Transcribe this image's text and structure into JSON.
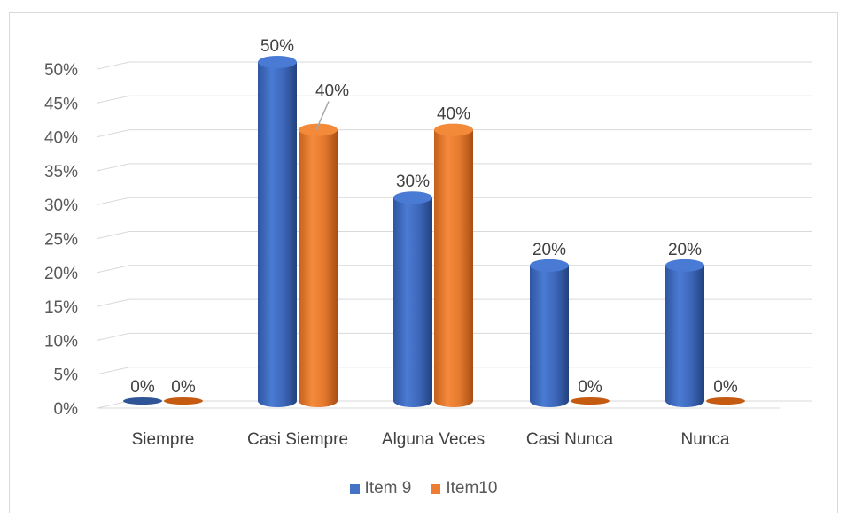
{
  "chart_data": {
    "type": "bar",
    "categories": [
      "Siempre",
      "Casi Siempre",
      "Alguna Veces",
      "Casi Nunca",
      "Nunca"
    ],
    "series": [
      {
        "name": "Item 9",
        "values": [
          0,
          50,
          30,
          20,
          20
        ],
        "color": "#4472c4",
        "labels": [
          "0%",
          "50%",
          "30%",
          "20%",
          "20%"
        ]
      },
      {
        "name": "Item10",
        "values": [
          0,
          40,
          40,
          0,
          0
        ],
        "color": "#ed7d31",
        "labels": [
          "0%",
          "40%",
          "40%",
          "0%",
          "0%"
        ]
      }
    ],
    "y_ticks": [
      "0%",
      "5%",
      "10%",
      "15%",
      "20%",
      "25%",
      "30%",
      "35%",
      "40%",
      "45%",
      "50%"
    ],
    "ylim": [
      0,
      50
    ],
    "grid": true,
    "legend_position": "bottom",
    "style": "3d-cylinder"
  }
}
